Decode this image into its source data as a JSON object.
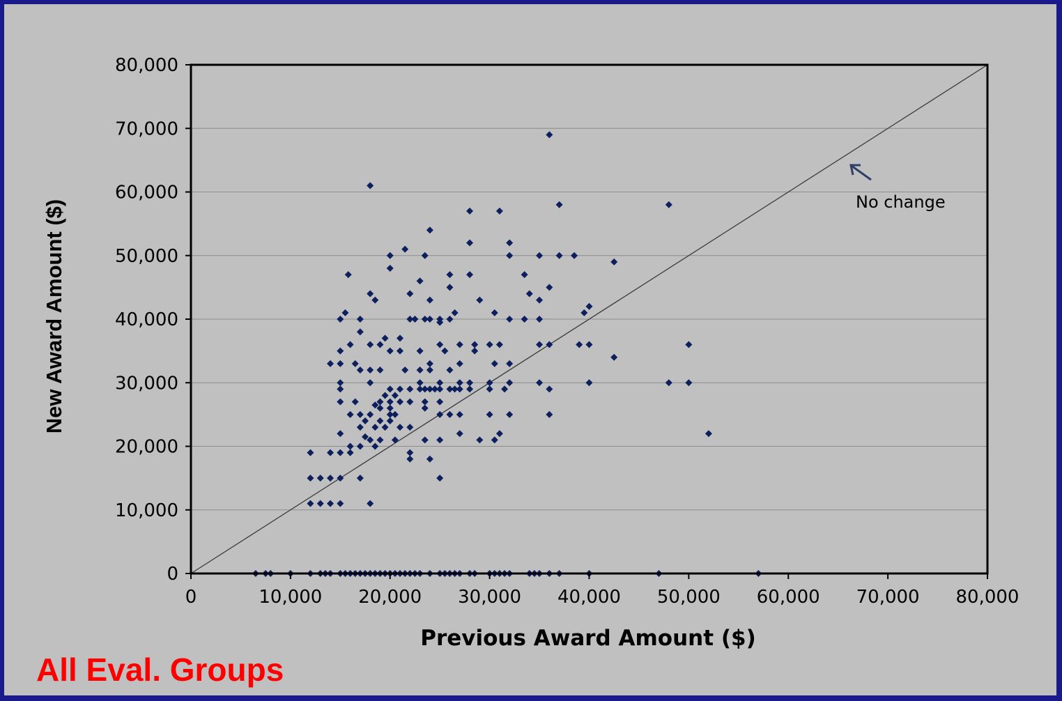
{
  "footer_label": "All Eval. Groups",
  "colors": {
    "frame": "#1a1a8c",
    "background": "#c0c0c0",
    "points": "#0d1f5c",
    "footer_label": "#ff0000"
  },
  "chart_data": {
    "type": "scatter",
    "title": "",
    "xlabel": "Previous Award Amount ($)",
    "ylabel": "New Award Amount ($)",
    "xlim": [
      0,
      80000
    ],
    "ylim": [
      0,
      80000
    ],
    "x_ticks": [
      "0",
      "10,000",
      "20,000",
      "30,000",
      "40,000",
      "50,000",
      "60,000",
      "70,000",
      "80,000"
    ],
    "y_ticks": [
      "0",
      "10,000",
      "20,000",
      "30,000",
      "40,000",
      "50,000",
      "60,000",
      "70,000",
      "80,000"
    ],
    "grid": "horizontal",
    "reference_line": {
      "from": [
        0,
        0
      ],
      "to": [
        80000,
        80000
      ]
    },
    "annotation": {
      "text": "No change",
      "x": 66000,
      "y": 64000
    },
    "points": [
      [
        36000,
        69000
      ],
      [
        18000,
        61000
      ],
      [
        48000,
        58000
      ],
      [
        37000,
        58000
      ],
      [
        28000,
        57000
      ],
      [
        31000,
        57000
      ],
      [
        24000,
        54000
      ],
      [
        28000,
        52000
      ],
      [
        32000,
        52000
      ],
      [
        21500,
        51000
      ],
      [
        20000,
        50000
      ],
      [
        23500,
        50000
      ],
      [
        32000,
        50000
      ],
      [
        35000,
        50000
      ],
      [
        37000,
        50000
      ],
      [
        38500,
        50000
      ],
      [
        42500,
        49000
      ],
      [
        20000,
        48000
      ],
      [
        15800,
        47000
      ],
      [
        26000,
        47000
      ],
      [
        28000,
        47000
      ],
      [
        33500,
        47000
      ],
      [
        23000,
        46000
      ],
      [
        26000,
        45000
      ],
      [
        36000,
        45000
      ],
      [
        18000,
        44000
      ],
      [
        22000,
        44000
      ],
      [
        34000,
        44000
      ],
      [
        18500,
        43000
      ],
      [
        24000,
        43000
      ],
      [
        29000,
        43000
      ],
      [
        35000,
        43000
      ],
      [
        40000,
        42000
      ],
      [
        15500,
        41000
      ],
      [
        26500,
        41000
      ],
      [
        30500,
        41000
      ],
      [
        39500,
        41000
      ],
      [
        15000,
        40000
      ],
      [
        17000,
        40000
      ],
      [
        22000,
        40000
      ],
      [
        22500,
        40000
      ],
      [
        23500,
        40000
      ],
      [
        24000,
        40000
      ],
      [
        25000,
        40000
      ],
      [
        26000,
        40000
      ],
      [
        32000,
        40000
      ],
      [
        33500,
        40000
      ],
      [
        35000,
        40000
      ],
      [
        25000,
        39500
      ],
      [
        17000,
        38000
      ],
      [
        19500,
        37000
      ],
      [
        21000,
        37000
      ],
      [
        36000,
        36000
      ],
      [
        42500,
        34000
      ],
      [
        15000,
        35000
      ],
      [
        19000,
        36000
      ],
      [
        18000,
        36000
      ],
      [
        16000,
        36000
      ],
      [
        25000,
        36000
      ],
      [
        27000,
        36000
      ],
      [
        28500,
        36000
      ],
      [
        30000,
        36000
      ],
      [
        31000,
        36000
      ],
      [
        35000,
        36000
      ],
      [
        39000,
        36000
      ],
      [
        40000,
        36000
      ],
      [
        50000,
        36000
      ],
      [
        20000,
        35000
      ],
      [
        21000,
        35000
      ],
      [
        23000,
        35000
      ],
      [
        25500,
        35000
      ],
      [
        28500,
        35000
      ],
      [
        14000,
        33000
      ],
      [
        15000,
        33000
      ],
      [
        16500,
        33000
      ],
      [
        24000,
        33000
      ],
      [
        27000,
        33000
      ],
      [
        30500,
        33000
      ],
      [
        32000,
        33000
      ],
      [
        17000,
        32000
      ],
      [
        18000,
        32000
      ],
      [
        19000,
        32000
      ],
      [
        21500,
        32000
      ],
      [
        23000,
        32000
      ],
      [
        24000,
        32000
      ],
      [
        26000,
        32000
      ],
      [
        15000,
        30000
      ],
      [
        18000,
        30000
      ],
      [
        23000,
        30000
      ],
      [
        25000,
        30000
      ],
      [
        27000,
        30000
      ],
      [
        28000,
        30000
      ],
      [
        30000,
        30000
      ],
      [
        32000,
        30000
      ],
      [
        35000,
        30000
      ],
      [
        40000,
        30000
      ],
      [
        48000,
        30000
      ],
      [
        50000,
        30000
      ],
      [
        15000,
        29000
      ],
      [
        20000,
        29000
      ],
      [
        21000,
        29000
      ],
      [
        22000,
        29000
      ],
      [
        23000,
        29000
      ],
      [
        23500,
        29000
      ],
      [
        24000,
        29000
      ],
      [
        24500,
        29000
      ],
      [
        25000,
        29000
      ],
      [
        26000,
        29000
      ],
      [
        26500,
        29000
      ],
      [
        27000,
        29000
      ],
      [
        28000,
        29000
      ],
      [
        30000,
        29000
      ],
      [
        31500,
        29000
      ],
      [
        36000,
        29000
      ],
      [
        19500,
        28000
      ],
      [
        20500,
        28000
      ],
      [
        15000,
        27000
      ],
      [
        16500,
        27000
      ],
      [
        19000,
        27000
      ],
      [
        20000,
        27000
      ],
      [
        21000,
        27000
      ],
      [
        22000,
        27000
      ],
      [
        23500,
        27000
      ],
      [
        25000,
        27000
      ],
      [
        18500,
        26500
      ],
      [
        19000,
        26000
      ],
      [
        20000,
        26000
      ],
      [
        23500,
        26000
      ],
      [
        20000,
        25000
      ],
      [
        16000,
        25000
      ],
      [
        17000,
        25000
      ],
      [
        18000,
        25000
      ],
      [
        20500,
        25000
      ],
      [
        25000,
        25000
      ],
      [
        26000,
        25000
      ],
      [
        27000,
        25000
      ],
      [
        30000,
        25000
      ],
      [
        32000,
        25000
      ],
      [
        36000,
        25000
      ],
      [
        17500,
        24000
      ],
      [
        19000,
        24000
      ],
      [
        20000,
        24000
      ],
      [
        17000,
        23000
      ],
      [
        18500,
        23000
      ],
      [
        19500,
        23000
      ],
      [
        21000,
        23000
      ],
      [
        22000,
        23000
      ],
      [
        15000,
        22000
      ],
      [
        27000,
        22000
      ],
      [
        31000,
        22000
      ],
      [
        52000,
        22000
      ],
      [
        17500,
        21500
      ],
      [
        18000,
        21000
      ],
      [
        19000,
        21000
      ],
      [
        20500,
        21000
      ],
      [
        23500,
        21000
      ],
      [
        25000,
        21000
      ],
      [
        29000,
        21000
      ],
      [
        30500,
        21000
      ],
      [
        16000,
        20000
      ],
      [
        17000,
        20000
      ],
      [
        18500,
        20000
      ],
      [
        12000,
        19000
      ],
      [
        14000,
        19000
      ],
      [
        15000,
        19000
      ],
      [
        16000,
        19000
      ],
      [
        22000,
        19000
      ],
      [
        22000,
        18000
      ],
      [
        24000,
        18000
      ],
      [
        12000,
        15000
      ],
      [
        13000,
        15000
      ],
      [
        14000,
        15000
      ],
      [
        15000,
        15000
      ],
      [
        17000,
        15000
      ],
      [
        25000,
        15000
      ],
      [
        12000,
        11000
      ],
      [
        13000,
        11000
      ],
      [
        14000,
        11000
      ],
      [
        15000,
        11000
      ],
      [
        18000,
        11000
      ],
      [
        6500,
        0
      ],
      [
        7500,
        0
      ],
      [
        8000,
        0
      ],
      [
        10000,
        0
      ],
      [
        12000,
        0
      ],
      [
        13000,
        0
      ],
      [
        13500,
        0
      ],
      [
        14000,
        0
      ],
      [
        15000,
        0
      ],
      [
        15500,
        0
      ],
      [
        16000,
        0
      ],
      [
        16500,
        0
      ],
      [
        17000,
        0
      ],
      [
        17500,
        0
      ],
      [
        18000,
        0
      ],
      [
        18500,
        0
      ],
      [
        19000,
        0
      ],
      [
        19500,
        0
      ],
      [
        20000,
        0
      ],
      [
        20500,
        0
      ],
      [
        21000,
        0
      ],
      [
        21500,
        0
      ],
      [
        22000,
        0
      ],
      [
        22500,
        0
      ],
      [
        23000,
        0
      ],
      [
        24000,
        0
      ],
      [
        25000,
        0
      ],
      [
        25500,
        0
      ],
      [
        26000,
        0
      ],
      [
        26500,
        0
      ],
      [
        27000,
        0
      ],
      [
        28000,
        0
      ],
      [
        28500,
        0
      ],
      [
        30000,
        0
      ],
      [
        30500,
        0
      ],
      [
        31000,
        0
      ],
      [
        31500,
        0
      ],
      [
        32000,
        0
      ],
      [
        34000,
        0
      ],
      [
        34500,
        0
      ],
      [
        35000,
        0
      ],
      [
        36000,
        0
      ],
      [
        37000,
        0
      ],
      [
        40000,
        0
      ],
      [
        47000,
        0
      ],
      [
        57000,
        0
      ]
    ]
  }
}
